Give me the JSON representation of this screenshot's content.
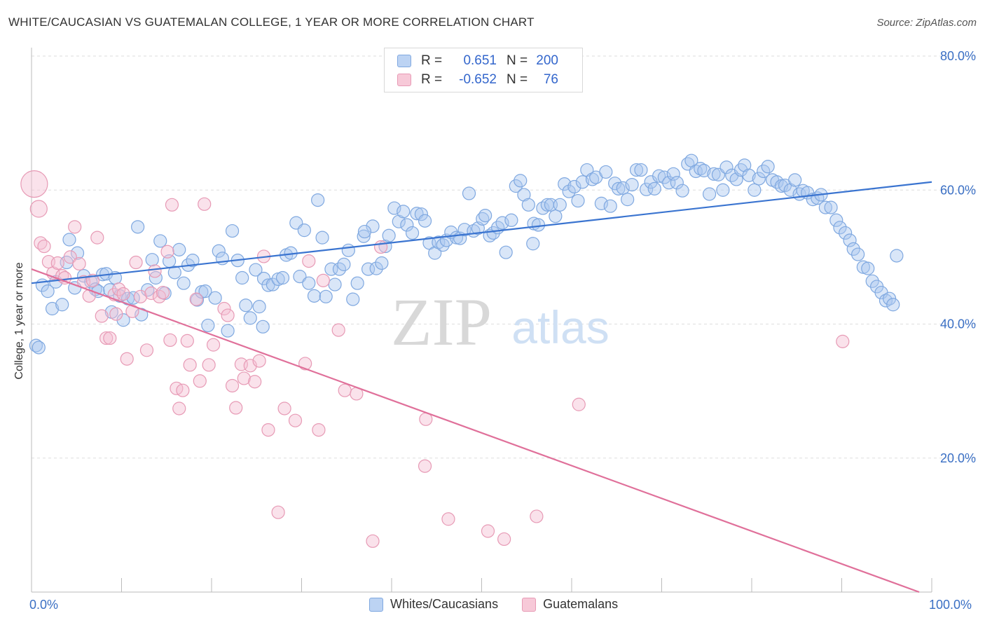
{
  "header": {
    "title": "WHITE/CAUCASIAN VS GUATEMALAN COLLEGE, 1 YEAR OR MORE CORRELATION CHART",
    "source": "Source: ZipAtlas.com"
  },
  "watermark": {
    "zip": "ZIP",
    "atlas": "atlas"
  },
  "legend": {
    "rows": [
      {
        "r_label": "R =",
        "r_value": "0.651",
        "n_label": "N =",
        "n_value": "200",
        "color": "#7fa8e0",
        "fill": "#bcd3f3"
      },
      {
        "r_label": "R =",
        "r_value": "-0.652",
        "n_label": "N =",
        "n_value": "76",
        "color": "#e79ab5",
        "fill": "#f7c9d8"
      }
    ]
  },
  "bottom_legend": {
    "items": [
      {
        "label": "Whites/Caucasians",
        "color": "#7fa8e0",
        "fill": "#bcd3f3"
      },
      {
        "label": "Guatemalans",
        "color": "#e79ab5",
        "fill": "#f7c9d8"
      }
    ]
  },
  "colors": {
    "blue": "#3a74d0",
    "pink": "#e0709a",
    "tick_text": "#3a6fc4",
    "grid": "#dddddd"
  },
  "chart_data": {
    "type": "scatter",
    "title": "WHITE/CAUCASIAN VS GUATEMALAN COLLEGE, 1 YEAR OR MORE CORRELATION CHART",
    "xlabel": "",
    "ylabel": "College, 1 year or more",
    "xlim": [
      0,
      100
    ],
    "ylim": [
      0,
      80
    ],
    "x_tick_labels": [
      "0.0%",
      "100.0%"
    ],
    "y_ticks": [
      20,
      40,
      60,
      80
    ],
    "y_tick_labels": [
      "20.0%",
      "40.0%",
      "60.0%",
      "80.0%"
    ],
    "grid": "horizontal dashed",
    "legend_position": "top-center",
    "series": [
      {
        "name": "Whites/Caucasians",
        "r": 0.651,
        "n": 200,
        "trend": {
          "x": [
            0,
            100
          ],
          "y": [
            46.1,
            61.2
          ]
        },
        "points": [
          [
            0.5,
            36.8
          ],
          [
            0.8,
            36.5
          ],
          [
            1.2,
            45.8
          ],
          [
            1.8,
            44.9
          ],
          [
            2.3,
            42.3
          ],
          [
            2.7,
            46.3
          ],
          [
            3.4,
            42.9
          ],
          [
            3.9,
            49.2
          ],
          [
            4.2,
            52.6
          ],
          [
            4.8,
            45.4
          ],
          [
            5.1,
            50.6
          ],
          [
            5.8,
            47.2
          ],
          [
            6.6,
            46.3
          ],
          [
            7.1,
            45.2
          ],
          [
            7.4,
            44.9
          ],
          [
            7.9,
            47.4
          ],
          [
            8.3,
            47.5
          ],
          [
            8.7,
            45.1
          ],
          [
            8.9,
            41.8
          ],
          [
            9.3,
            46.9
          ],
          [
            9.8,
            44.2
          ],
          [
            10.2,
            40.6
          ],
          [
            10.7,
            43.8
          ],
          [
            11.3,
            43.9
          ],
          [
            11.8,
            54.5
          ],
          [
            12.2,
            41.4
          ],
          [
            12.9,
            45.1
          ],
          [
            13.4,
            49.6
          ],
          [
            13.8,
            46.9
          ],
          [
            14.3,
            52.4
          ],
          [
            14.8,
            44.6
          ],
          [
            15.3,
            49.4
          ],
          [
            15.9,
            47.7
          ],
          [
            16.4,
            51.1
          ],
          [
            16.9,
            46.1
          ],
          [
            17.4,
            48.8
          ],
          [
            17.9,
            49.5
          ],
          [
            18.4,
            43.6
          ],
          [
            18.9,
            44.8
          ],
          [
            19.3,
            44.9
          ],
          [
            19.6,
            39.8
          ],
          [
            20.4,
            43.9
          ],
          [
            20.8,
            50.9
          ],
          [
            21.2,
            49.8
          ],
          [
            21.8,
            39.0
          ],
          [
            22.3,
            53.9
          ],
          [
            22.9,
            49.5
          ],
          [
            23.4,
            46.9
          ],
          [
            23.8,
            42.8
          ],
          [
            24.3,
            40.9
          ],
          [
            24.9,
            48.1
          ],
          [
            25.3,
            42.6
          ],
          [
            25.8,
            46.8
          ],
          [
            26.3,
            45.8
          ],
          [
            26.8,
            45.9
          ],
          [
            27.4,
            46.7
          ],
          [
            27.9,
            46.9
          ],
          [
            28.3,
            50.3
          ],
          [
            28.8,
            50.6
          ],
          [
            29.4,
            55.1
          ],
          [
            29.8,
            47.1
          ],
          [
            30.3,
            54.0
          ],
          [
            30.8,
            46.1
          ],
          [
            31.4,
            44.2
          ],
          [
            31.8,
            58.5
          ],
          [
            32.3,
            52.9
          ],
          [
            32.7,
            44.1
          ],
          [
            33.3,
            48.2
          ],
          [
            33.7,
            45.9
          ],
          [
            34.2,
            48.2
          ],
          [
            34.7,
            48.9
          ],
          [
            35.2,
            51.0
          ],
          [
            35.7,
            43.7
          ],
          [
            36.2,
            46.1
          ],
          [
            36.9,
            53.1
          ],
          [
            37.4,
            48.2
          ],
          [
            37.9,
            54.6
          ],
          [
            38.3,
            48.3
          ],
          [
            38.9,
            49.1
          ],
          [
            39.3,
            51.6
          ],
          [
            39.7,
            53.2
          ],
          [
            40.3,
            57.3
          ],
          [
            40.8,
            55.3
          ],
          [
            41.3,
            56.8
          ],
          [
            41.7,
            54.8
          ],
          [
            42.3,
            53.6
          ],
          [
            42.8,
            56.5
          ],
          [
            43.3,
            56.4
          ],
          [
            43.7,
            55.4
          ],
          [
            44.2,
            52.1
          ],
          [
            44.8,
            50.6
          ],
          [
            45.2,
            52.2
          ],
          [
            45.7,
            51.8
          ],
          [
            46.1,
            52.5
          ],
          [
            46.6,
            53.7
          ],
          [
            47.2,
            52.9
          ],
          [
            47.6,
            52.8
          ],
          [
            48.1,
            54.1
          ],
          [
            48.6,
            59.5
          ],
          [
            49.1,
            53.9
          ],
          [
            49.6,
            54.3
          ],
          [
            50.1,
            55.7
          ],
          [
            50.4,
            56.2
          ],
          [
            50.9,
            53.2
          ],
          [
            51.3,
            53.6
          ],
          [
            51.8,
            54.4
          ],
          [
            52.3,
            55.1
          ],
          [
            52.7,
            50.7
          ],
          [
            53.3,
            55.5
          ],
          [
            53.8,
            60.6
          ],
          [
            54.3,
            61.4
          ],
          [
            54.7,
            59.3
          ],
          [
            55.2,
            57.8
          ],
          [
            55.8,
            55.0
          ],
          [
            56.3,
            54.8
          ],
          [
            56.8,
            57.3
          ],
          [
            57.3,
            57.8
          ],
          [
            57.7,
            57.8
          ],
          [
            58.2,
            56.1
          ],
          [
            58.7,
            57.8
          ],
          [
            59.2,
            60.9
          ],
          [
            59.7,
            59.8
          ],
          [
            60.3,
            60.5
          ],
          [
            60.7,
            58.4
          ],
          [
            61.2,
            61.2
          ],
          [
            61.7,
            63.0
          ],
          [
            62.3,
            61.6
          ],
          [
            62.7,
            61.9
          ],
          [
            63.3,
            58.0
          ],
          [
            63.8,
            62.7
          ],
          [
            64.3,
            57.6
          ],
          [
            64.8,
            61.0
          ],
          [
            65.2,
            60.2
          ],
          [
            65.7,
            60.3
          ],
          [
            66.2,
            58.6
          ],
          [
            66.7,
            60.8
          ],
          [
            67.2,
            63.0
          ],
          [
            67.7,
            63.0
          ],
          [
            68.3,
            60.1
          ],
          [
            68.8,
            61.2
          ],
          [
            69.2,
            60.2
          ],
          [
            69.7,
            62.1
          ],
          [
            70.3,
            61.9
          ],
          [
            70.8,
            61.1
          ],
          [
            71.3,
            62.4
          ],
          [
            71.7,
            61.1
          ],
          [
            72.3,
            59.9
          ],
          [
            72.9,
            63.9
          ],
          [
            73.3,
            64.4
          ],
          [
            73.8,
            62.8
          ],
          [
            74.3,
            63.2
          ],
          [
            74.7,
            62.9
          ],
          [
            75.3,
            59.4
          ],
          [
            75.8,
            62.4
          ],
          [
            76.3,
            62.3
          ],
          [
            76.8,
            60.0
          ],
          [
            77.2,
            63.4
          ],
          [
            77.8,
            62.2
          ],
          [
            78.3,
            61.6
          ],
          [
            78.8,
            63.0
          ],
          [
            79.2,
            63.7
          ],
          [
            79.7,
            62.2
          ],
          [
            80.3,
            60.0
          ],
          [
            80.8,
            61.7
          ],
          [
            81.3,
            62.8
          ],
          [
            81.8,
            63.5
          ],
          [
            82.3,
            61.5
          ],
          [
            82.8,
            61.2
          ],
          [
            83.3,
            60.6
          ],
          [
            83.7,
            60.7
          ],
          [
            84.3,
            60.0
          ],
          [
            84.8,
            61.5
          ],
          [
            85.3,
            59.4
          ],
          [
            85.7,
            59.9
          ],
          [
            86.2,
            59.6
          ],
          [
            86.8,
            58.6
          ],
          [
            87.3,
            58.8
          ],
          [
            87.7,
            59.3
          ],
          [
            88.2,
            57.4
          ],
          [
            88.8,
            57.4
          ],
          [
            89.4,
            55.5
          ],
          [
            89.8,
            54.4
          ],
          [
            90.4,
            53.6
          ],
          [
            90.9,
            52.5
          ],
          [
            91.3,
            51.2
          ],
          [
            91.8,
            50.4
          ],
          [
            92.4,
            48.5
          ],
          [
            92.9,
            48.3
          ],
          [
            93.4,
            46.4
          ],
          [
            93.9,
            45.6
          ],
          [
            94.4,
            44.7
          ],
          [
            94.9,
            43.5
          ],
          [
            95.3,
            43.8
          ],
          [
            96.1,
            50.2
          ],
          [
            95.7,
            42.9
          ],
          [
            55.7,
            52.0
          ],
          [
            37.0,
            53.8
          ],
          [
            25.7,
            39.6
          ]
        ]
      },
      {
        "name": "Guatemalans",
        "r": -0.652,
        "n": 76,
        "trend": {
          "x": [
            0,
            100
          ],
          "y": [
            48.2,
            0.0
          ]
        },
        "points": [
          [
            0.3,
            60.9
          ],
          [
            0.8,
            57.2
          ],
          [
            1.0,
            52.1
          ],
          [
            1.4,
            51.6
          ],
          [
            1.9,
            49.3
          ],
          [
            2.4,
            47.6
          ],
          [
            2.9,
            49.1
          ],
          [
            3.4,
            47.2
          ],
          [
            3.7,
            46.9
          ],
          [
            4.3,
            50.0
          ],
          [
            4.8,
            54.5
          ],
          [
            5.3,
            49.0
          ],
          [
            5.8,
            46.3
          ],
          [
            6.4,
            44.2
          ],
          [
            6.8,
            46.5
          ],
          [
            7.3,
            52.9
          ],
          [
            7.8,
            41.2
          ],
          [
            8.3,
            37.9
          ],
          [
            8.7,
            37.9
          ],
          [
            9.2,
            44.4
          ],
          [
            9.7,
            45.2
          ],
          [
            10.2,
            44.5
          ],
          [
            10.6,
            34.8
          ],
          [
            11.2,
            41.9
          ],
          [
            11.6,
            49.2
          ],
          [
            12.1,
            44.1
          ],
          [
            12.8,
            36.1
          ],
          [
            13.3,
            44.6
          ],
          [
            13.7,
            47.9
          ],
          [
            14.2,
            44.1
          ],
          [
            14.6,
            44.7
          ],
          [
            15.1,
            50.8
          ],
          [
            15.4,
            37.6
          ],
          [
            15.6,
            57.8
          ],
          [
            16.1,
            30.4
          ],
          [
            16.4,
            27.4
          ],
          [
            16.8,
            30.1
          ],
          [
            17.3,
            37.5
          ],
          [
            17.6,
            33.9
          ],
          [
            18.3,
            43.7
          ],
          [
            18.7,
            31.5
          ],
          [
            19.2,
            57.9
          ],
          [
            19.7,
            33.9
          ],
          [
            20.2,
            36.9
          ],
          [
            21.4,
            42.3
          ],
          [
            21.8,
            41.3
          ],
          [
            22.3,
            30.8
          ],
          [
            22.7,
            27.5
          ],
          [
            23.3,
            34.0
          ],
          [
            23.6,
            31.9
          ],
          [
            24.3,
            33.8
          ],
          [
            24.8,
            31.4
          ],
          [
            25.3,
            34.5
          ],
          [
            25.8,
            50.1
          ],
          [
            26.3,
            24.2
          ],
          [
            27.4,
            11.9
          ],
          [
            28.1,
            27.4
          ],
          [
            29.3,
            25.6
          ],
          [
            30.4,
            34.1
          ],
          [
            30.8,
            49.4
          ],
          [
            31.9,
            24.2
          ],
          [
            32.4,
            46.5
          ],
          [
            34.1,
            39.1
          ],
          [
            34.8,
            30.1
          ],
          [
            36.1,
            29.6
          ],
          [
            37.9,
            7.6
          ],
          [
            38.8,
            51.5
          ],
          [
            43.8,
            25.8
          ],
          [
            43.7,
            18.8
          ],
          [
            46.3,
            10.9
          ],
          [
            50.7,
            9.1
          ],
          [
            52.5,
            7.9
          ],
          [
            56.1,
            11.3
          ],
          [
            60.8,
            28.0
          ],
          [
            90.1,
            37.4
          ],
          [
            9.4,
            41.5
          ]
        ]
      }
    ]
  }
}
